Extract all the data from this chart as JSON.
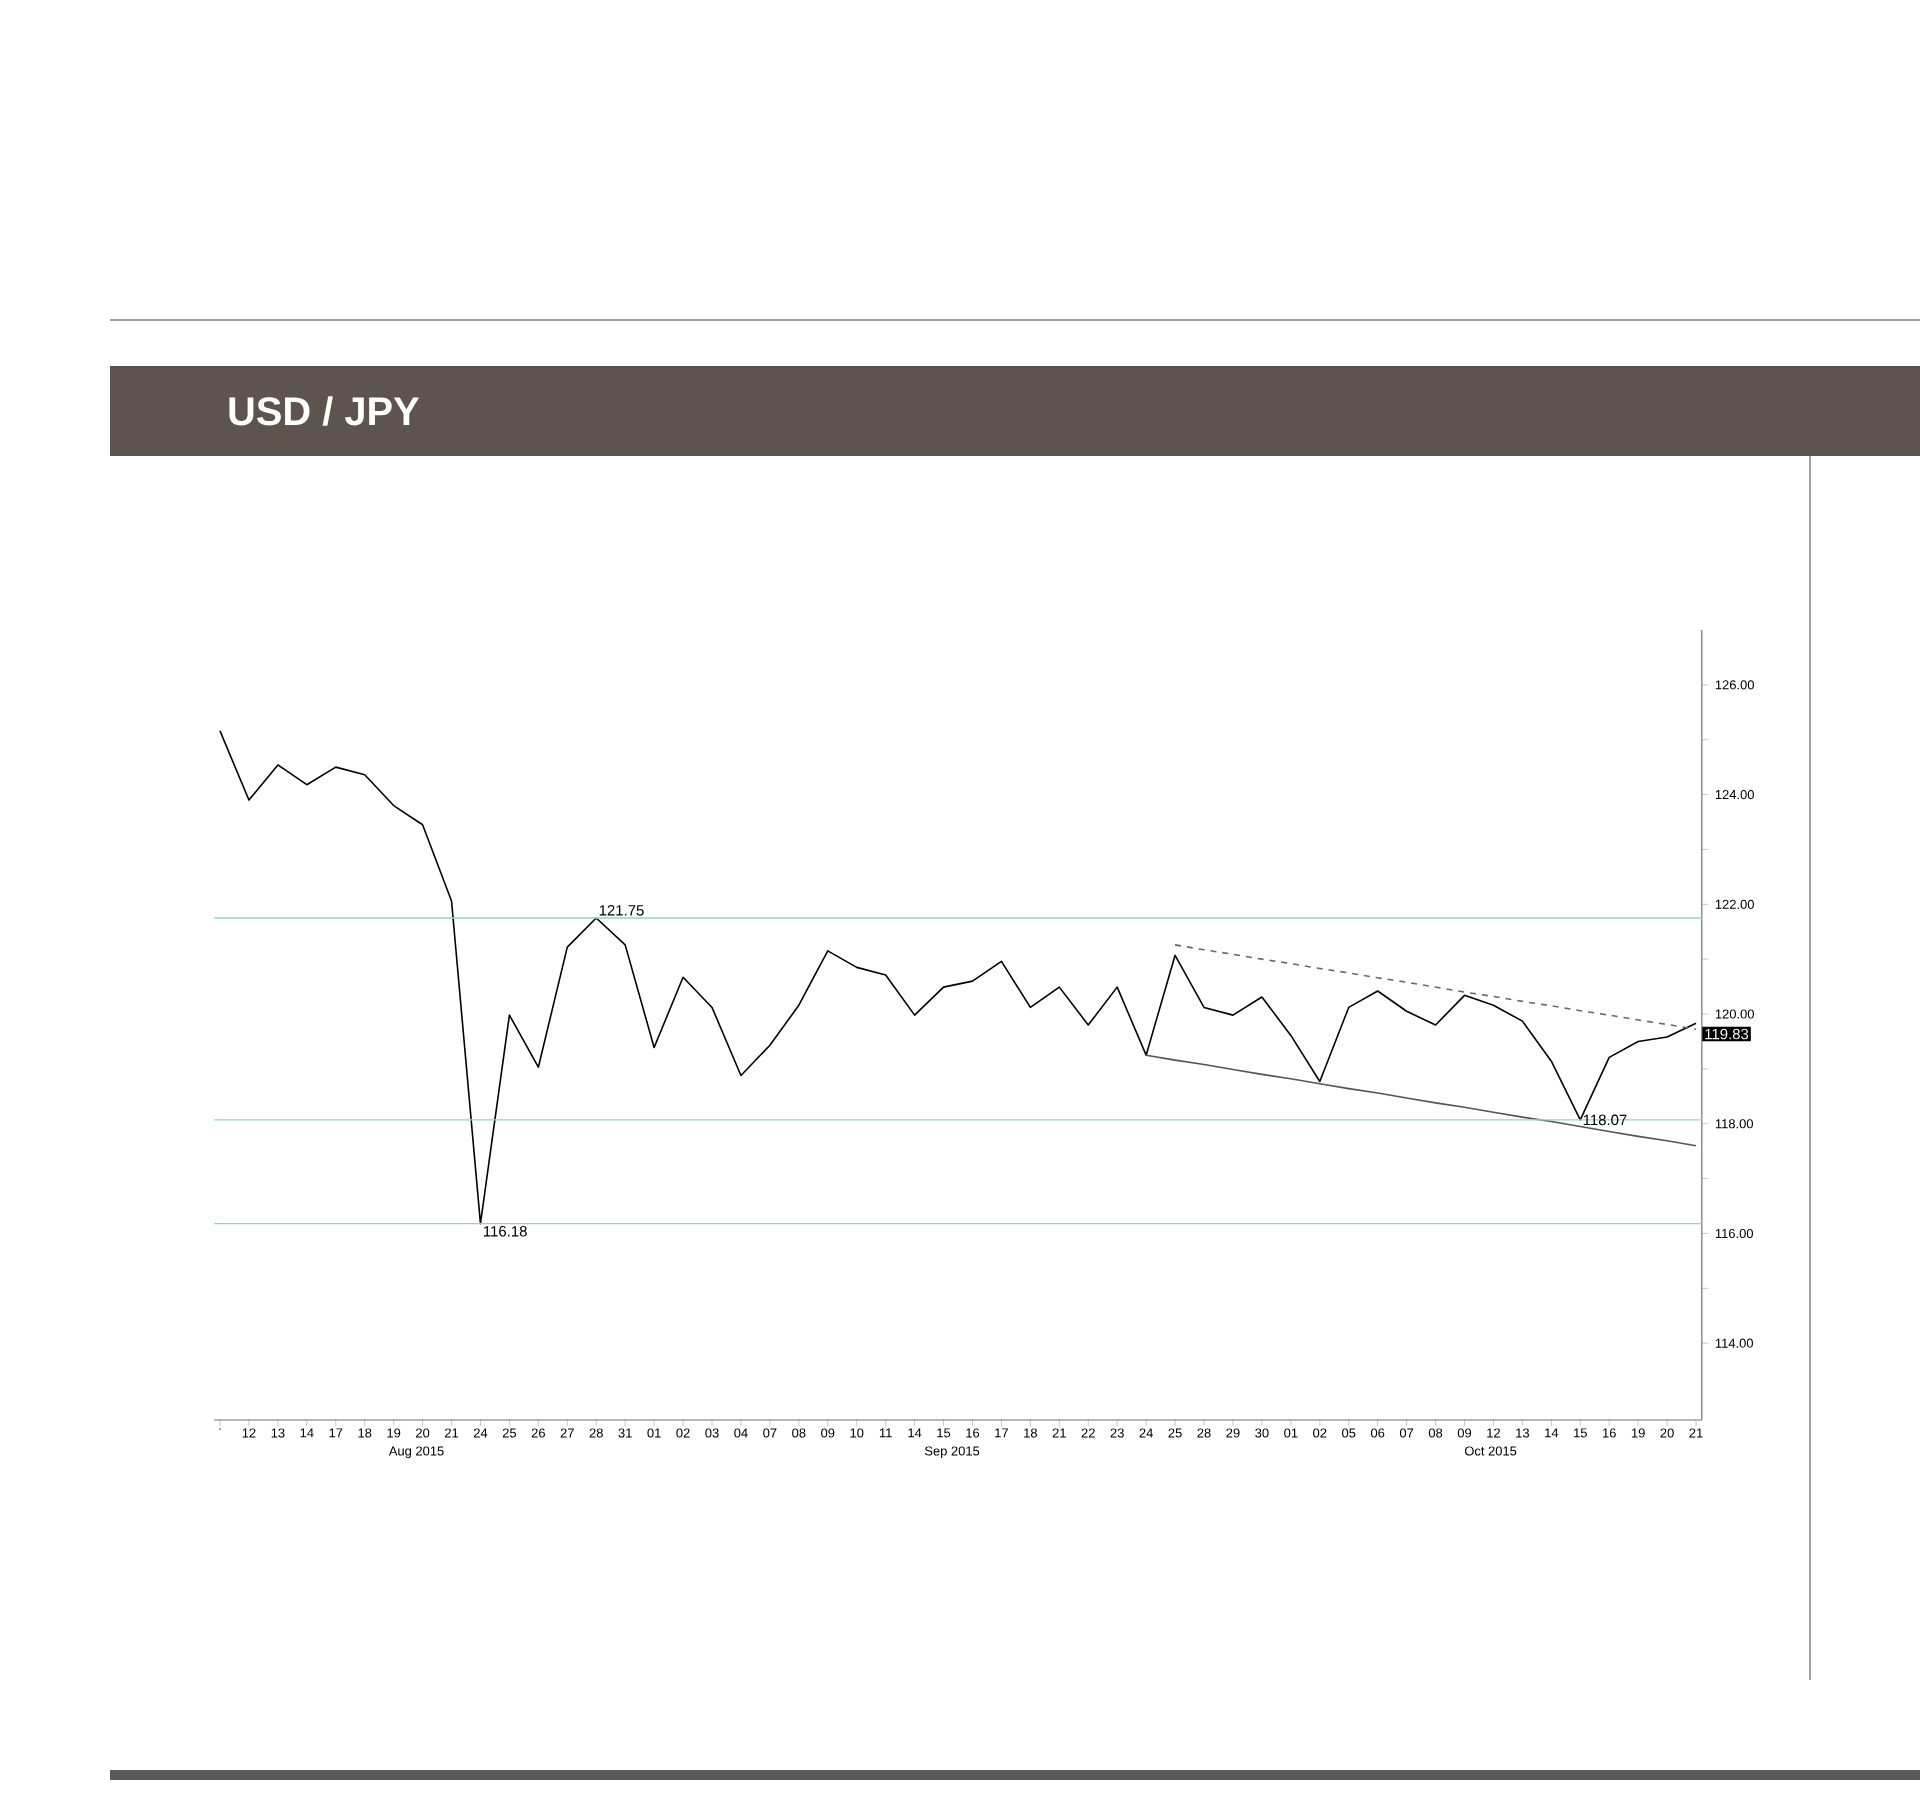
{
  "chart_data": {
    "type": "line",
    "title": "USD / JPY",
    "categories": [
      ".",
      "12",
      "13",
      "14",
      "17",
      "18",
      "19",
      "20",
      "21",
      "24",
      "25",
      "26",
      "27",
      "28",
      "31",
      "01",
      "02",
      "03",
      "04",
      "07",
      "08",
      "09",
      "10",
      "11",
      "14",
      "15",
      "16",
      "17",
      "18",
      "21",
      "22",
      "23",
      "24",
      "25",
      "28",
      "29",
      "30",
      "01",
      "02",
      "05",
      "06",
      "07",
      "08",
      "09",
      "12",
      "13",
      "14",
      "15",
      "16",
      "19",
      "20",
      "21"
    ],
    "ylim": [
      112.6,
      127
    ],
    "yticks": [
      {
        "value": 114,
        "label": "114.00"
      },
      {
        "value": 115,
        "label": null
      },
      {
        "value": 116,
        "label": "116.00"
      },
      {
        "value": 117,
        "label": null
      },
      {
        "value": 118,
        "label": "118.00"
      },
      {
        "value": 119,
        "label": null
      },
      {
        "value": 120,
        "label": "120.00"
      },
      {
        "value": 121,
        "label": null
      },
      {
        "value": 122,
        "label": "122.00"
      },
      {
        "value": 123,
        "label": null
      },
      {
        "value": 124,
        "label": "124.00"
      },
      {
        "value": 125,
        "label": null
      },
      {
        "value": 126,
        "label": "126.00"
      }
    ],
    "series": [
      {
        "color": "#000000",
        "values": [
          125.16,
          123.9,
          124.54,
          124.18,
          124.5,
          124.36,
          123.8,
          123.45,
          122.06,
          116.18,
          119.98,
          119.03,
          121.22,
          121.75,
          121.26,
          119.39,
          120.67,
          120.12,
          118.88,
          119.43,
          120.16,
          121.15,
          120.85,
          120.71,
          119.98,
          120.49,
          120.6,
          120.96,
          120.12,
          120.49,
          119.8,
          120.49,
          119.25,
          121.07,
          120.12,
          119.98,
          120.31,
          119.61,
          118.77,
          120.12,
          120.42,
          120.05,
          119.8,
          120.34,
          120.16,
          119.87,
          119.14,
          118.07,
          119.21,
          119.5,
          119.58,
          119.83
        ]
      },
      {
        "type": "line",
        "color": "#666666",
        "line_style": "dashed",
        "values": [
          null,
          null,
          null,
          null,
          null,
          null,
          null,
          null,
          null,
          null,
          null,
          null,
          null,
          null,
          null,
          null,
          null,
          null,
          null,
          null,
          null,
          null,
          null,
          null,
          null,
          null,
          null,
          null,
          null,
          null,
          null,
          null,
          null,
          121.26,
          121.17,
          121.09,
          121.0,
          120.92,
          120.83,
          120.75,
          120.66,
          120.58,
          120.49,
          120.4,
          120.32,
          120.23,
          120.15,
          120.06,
          119.98,
          119.89,
          119.81,
          119.72
        ]
      },
      {
        "type": "line",
        "color": "#555555",
        "line_style": "solid",
        "values": [
          null,
          null,
          null,
          null,
          null,
          null,
          null,
          null,
          null,
          null,
          null,
          null,
          null,
          null,
          null,
          null,
          null,
          null,
          null,
          null,
          null,
          null,
          null,
          null,
          null,
          null,
          null,
          null,
          null,
          null,
          null,
          null,
          119.25,
          119.16,
          119.08,
          118.99,
          118.9,
          118.82,
          118.73,
          118.64,
          118.56,
          118.47,
          118.38,
          118.3,
          118.21,
          118.12,
          118.04,
          117.95,
          117.86,
          117.77,
          117.69,
          117.6
        ]
      }
    ],
    "ref_lines": [
      {
        "axis": "y",
        "value": 121.75,
        "color": "#9ccfc4"
      },
      {
        "axis": "y",
        "value": 116.18,
        "color": "#9ccfc4"
      },
      {
        "axis": "y",
        "value": 118.07,
        "color": "#9ccfc4"
      }
    ],
    "annotations": [
      {
        "text": "121.75",
        "y": 121.75
      },
      {
        "text": "116.18",
        "y": 116.18
      },
      {
        "text": "118.07",
        "y": 118.07
      },
      "119.83",
      "Aug 2015",
      "Sep 2015",
      "Oct 2015"
    ]
  }
}
